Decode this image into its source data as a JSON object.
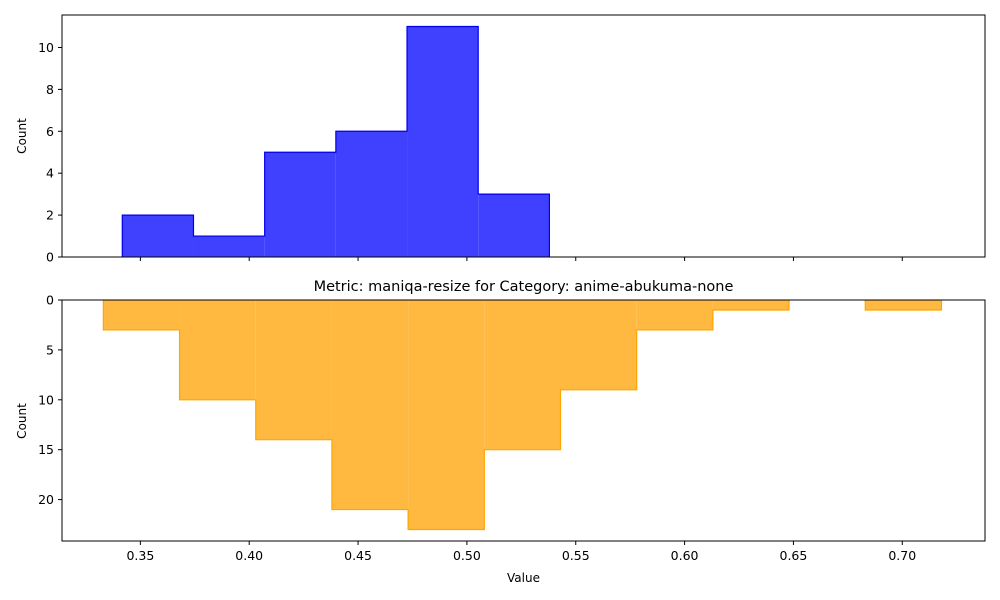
{
  "chart_data": [
    {
      "type": "histogram",
      "panel": "top",
      "xlabel": "",
      "ylabel": "Count",
      "xlim": [
        0.314,
        0.738
      ],
      "ylim": [
        0,
        11.55
      ],
      "y_ticks": [
        0,
        2,
        4,
        6,
        8,
        10
      ],
      "x_ticks": [
        0.35,
        0.4,
        0.45,
        0.5,
        0.55,
        0.6,
        0.65,
        0.7
      ],
      "x_ticklabels_visible": false,
      "fill_color": "#4040ff",
      "edge_color": "#0000ee",
      "bins": [
        {
          "x0": 0.3417,
          "x1": 0.3744,
          "count": 2
        },
        {
          "x0": 0.3744,
          "x1": 0.4071,
          "count": 1
        },
        {
          "x0": 0.4071,
          "x1": 0.4398,
          "count": 5
        },
        {
          "x0": 0.4398,
          "x1": 0.4725,
          "count": 6
        },
        {
          "x0": 0.4725,
          "x1": 0.5052,
          "count": 11
        },
        {
          "x0": 0.5052,
          "x1": 0.5379,
          "count": 3
        }
      ]
    },
    {
      "type": "histogram",
      "panel": "bottom",
      "title": "Metric: maniqa-resize for Category: anime-abukuma-none",
      "xlabel": "Value",
      "ylabel": "Count",
      "y_inverted": true,
      "xlim": [
        0.314,
        0.738
      ],
      "ylim": [
        0,
        24.15
      ],
      "y_ticks": [
        0,
        5,
        10,
        15,
        20
      ],
      "x_ticks": [
        0.35,
        0.4,
        0.45,
        0.5,
        0.55,
        0.6,
        0.65,
        0.7
      ],
      "x_ticklabels": [
        "0.35",
        "0.40",
        "0.45",
        "0.50",
        "0.55",
        "0.60",
        "0.65",
        "0.70"
      ],
      "fill_color": "#ffb940",
      "edge_color": "#ffa500",
      "bins": [
        {
          "x0": 0.333,
          "x1": 0.368,
          "count": 3
        },
        {
          "x0": 0.368,
          "x1": 0.403,
          "count": 10
        },
        {
          "x0": 0.403,
          "x1": 0.438,
          "count": 14
        },
        {
          "x0": 0.438,
          "x1": 0.473,
          "count": 21
        },
        {
          "x0": 0.473,
          "x1": 0.508,
          "count": 23
        },
        {
          "x0": 0.508,
          "x1": 0.543,
          "count": 15
        },
        {
          "x0": 0.543,
          "x1": 0.578,
          "count": 9
        },
        {
          "x0": 0.578,
          "x1": 0.613,
          "count": 3
        },
        {
          "x0": 0.613,
          "x1": 0.648,
          "count": 1
        },
        {
          "x0": 0.648,
          "x1": 0.683,
          "count": 0
        },
        {
          "x0": 0.683,
          "x1": 0.718,
          "count": 1
        }
      ]
    }
  ]
}
